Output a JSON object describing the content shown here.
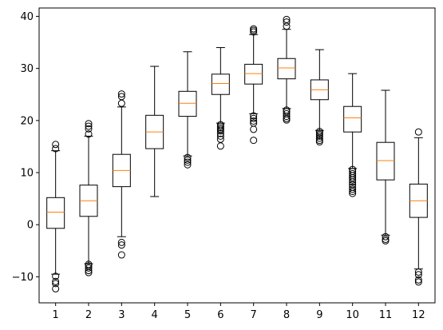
{
  "chart_data": {
    "type": "box",
    "title": "",
    "xlabel": "",
    "ylabel": "",
    "categories": [
      "1",
      "2",
      "3",
      "4",
      "5",
      "6",
      "7",
      "8",
      "9",
      "10",
      "11",
      "12"
    ],
    "ylim": [
      -15,
      41.6
    ],
    "yticks": [
      -10,
      0,
      10,
      20,
      30,
      40
    ],
    "grid": false,
    "colors": {
      "box": "#000000",
      "median": "#ff7f0e",
      "background": "#ffffff"
    },
    "boxes": [
      {
        "label": "1",
        "whislo": -9.5,
        "q1": -0.7,
        "med": 2.4,
        "q3": 5.2,
        "whishi": 14.2,
        "fliers": [
          15.4,
          14.6,
          -9.9,
          -10.9,
          -11.3,
          -12.3
        ]
      },
      {
        "label": "2",
        "whislo": -7.5,
        "q1": 1.6,
        "med": 4.6,
        "q3": 7.6,
        "whishi": 17.0,
        "fliers": [
          19.4,
          18.9,
          18.4,
          17.4,
          -7.6,
          -7.9,
          -8.3,
          -8.8,
          -9.2
        ]
      },
      {
        "label": "3",
        "whislo": -2.3,
        "q1": 7.3,
        "med": 10.4,
        "q3": 13.5,
        "whishi": 22.6,
        "fliers": [
          25.1,
          24.6,
          23.3,
          -3.4,
          -3.9,
          -5.8
        ]
      },
      {
        "label": "4",
        "whislo": 5.4,
        "q1": 14.6,
        "med": 17.8,
        "q3": 21.0,
        "whishi": 30.4,
        "fliers": []
      },
      {
        "label": "5",
        "whislo": 13.2,
        "q1": 20.8,
        "med": 23.3,
        "q3": 25.6,
        "whishi": 33.2,
        "fliers": [
          12.9,
          12.4,
          12.0,
          11.5
        ]
      },
      {
        "label": "6",
        "whislo": 19.5,
        "q1": 25.0,
        "med": 27.1,
        "q3": 28.9,
        "whishi": 34.0,
        "fliers": [
          19.2,
          18.9,
          18.6,
          18.3,
          18.0,
          17.5,
          17.0,
          16.4,
          15.1
        ]
      },
      {
        "label": "7",
        "whislo": 21.3,
        "q1": 27.0,
        "med": 29.0,
        "q3": 30.8,
        "whishi": 36.5,
        "fliers": [
          37.6,
          37.3,
          37.0,
          20.9,
          20.4,
          19.9,
          19.5,
          18.3,
          16.2
        ]
      },
      {
        "label": "8",
        "whislo": 22.3,
        "q1": 28.0,
        "med": 30.1,
        "q3": 31.9,
        "whishi": 37.5,
        "fliers": [
          39.4,
          38.9,
          38.1,
          22.0,
          21.7,
          21.3,
          20.8,
          20.4,
          20.1
        ]
      },
      {
        "label": "9",
        "whislo": 18.1,
        "q1": 24.0,
        "med": 25.9,
        "q3": 27.8,
        "whishi": 33.6,
        "fliers": [
          17.9,
          17.6,
          17.3,
          17.0,
          16.6,
          16.2,
          15.9
        ]
      },
      {
        "label": "10",
        "whislo": 10.8,
        "q1": 17.8,
        "med": 20.5,
        "q3": 22.7,
        "whishi": 29.0,
        "fliers": [
          10.6,
          10.2,
          9.8,
          9.4,
          9.0,
          8.6,
          8.2,
          7.7,
          7.2,
          6.8,
          6.4,
          6.0
        ]
      },
      {
        "label": "11",
        "whislo": -2.0,
        "q1": 8.6,
        "med": 12.3,
        "q3": 15.8,
        "whishi": 25.8,
        "fliers": [
          -2.3,
          -2.8,
          -3.1
        ]
      },
      {
        "label": "12",
        "whislo": -8.5,
        "q1": 1.4,
        "med": 4.6,
        "q3": 7.8,
        "whishi": 16.7,
        "fliers": [
          17.8,
          -9.1,
          -9.6,
          -10.6,
          -11.0
        ]
      }
    ]
  }
}
